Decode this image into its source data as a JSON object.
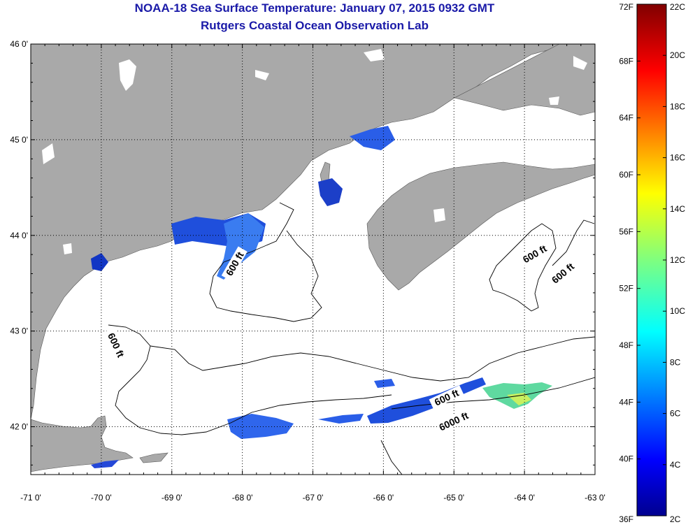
{
  "title": {
    "line1": "NOAA-18 Sea Surface Temperature:  January 07, 2015 0932 GMT",
    "line2": "Rutgers Coastal Ocean Observation Lab"
  },
  "map": {
    "lon_range": [
      -71,
      -63
    ],
    "lat_range": [
      41.5,
      46
    ],
    "lon_ticks": [
      "-71 0'",
      "-70 0'",
      "-69 0'",
      "-68 0'",
      "-67 0'",
      "-66 0'",
      "-65 0'",
      "-64 0'",
      "-63 0'"
    ],
    "lat_ticks": [
      "46 0'",
      "45 0'",
      "44 0'",
      "43 0'",
      "42 0'"
    ],
    "grid": "dotted",
    "land_color": "#a9a9a9",
    "water_color": "#ffffff",
    "contour_labels": [
      {
        "text": "600 ft",
        "lon": -68.1,
        "lat": 43.7,
        "angle": -60
      },
      {
        "text": "600 ft",
        "lon": -69.8,
        "lat": 42.85,
        "angle": 65
      },
      {
        "text": "600 ft",
        "lon": -63.85,
        "lat": 43.8,
        "angle": -30
      },
      {
        "text": "600 ft",
        "lon": -63.45,
        "lat": 43.6,
        "angle": -40
      },
      {
        "text": "600 ft",
        "lon": -65.1,
        "lat": 42.3,
        "angle": -25
      },
      {
        "text": "6000 ft",
        "lon": -65.0,
        "lat": 42.05,
        "angle": -25
      }
    ]
  },
  "colorbar": {
    "fahrenheit_labels": [
      "72F",
      "68F",
      "64F",
      "60F",
      "56F",
      "52F",
      "48F",
      "44F",
      "40F",
      "36F"
    ],
    "celsius_labels": [
      "22C",
      "20C",
      "18C",
      "16C",
      "14C",
      "12C",
      "10C",
      "8C",
      "6C",
      "4C",
      "2C"
    ],
    "range_c": [
      2,
      22
    ],
    "colormap": "jet"
  },
  "icons": {
    "colorbar": "temperature-scale",
    "map": "sea-surface-temperature-map"
  }
}
